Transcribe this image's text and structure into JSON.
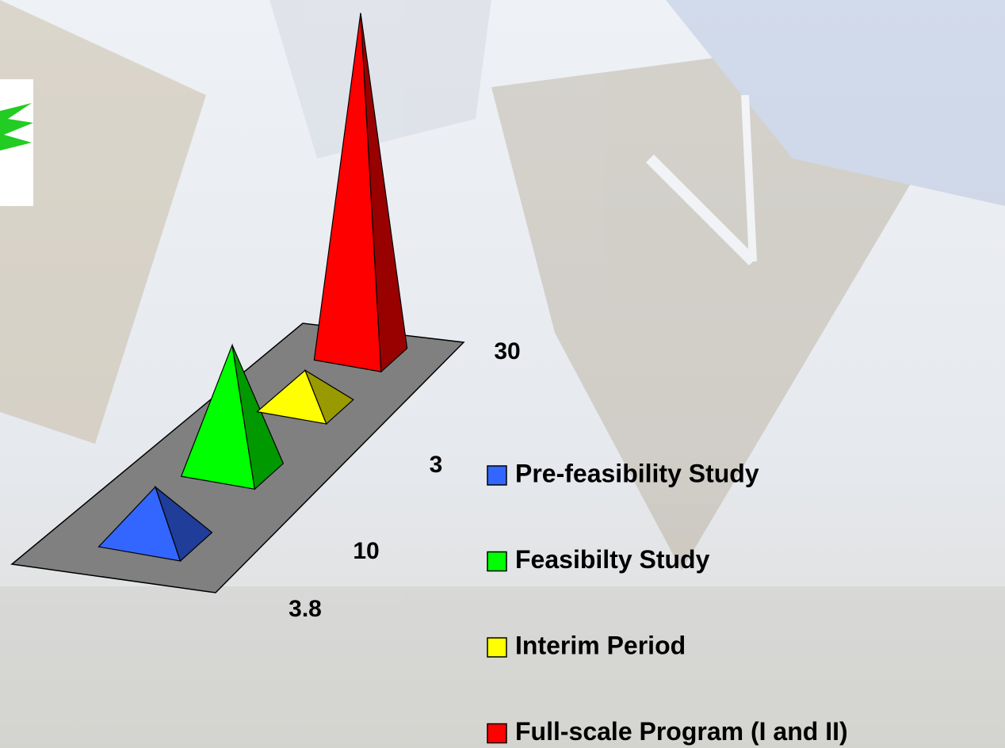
{
  "chart_data": {
    "type": "pyramid",
    "categories": [
      "Pre-feasibility Study",
      "Feasibilty Study",
      "Interim Period",
      "Full-scale Program (I and II)"
    ],
    "values": [
      3.8,
      10,
      3,
      30
    ],
    "colors": [
      "#3366ff",
      "#00ff00",
      "#ffff00",
      "#ff0000"
    ]
  }
}
